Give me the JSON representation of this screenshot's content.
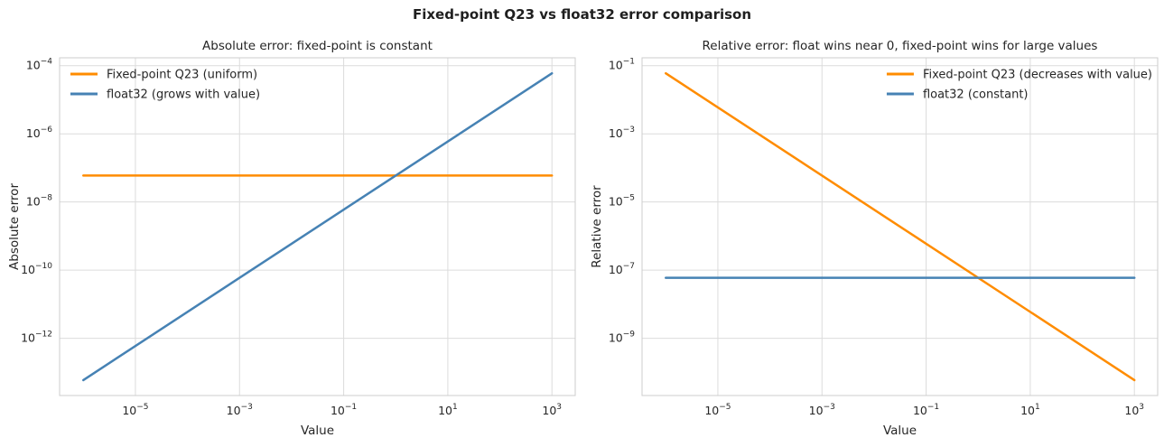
{
  "figure": {
    "title": "Fixed-point Q23 vs float32 error comparison",
    "background": "#ffffff"
  },
  "style": {
    "grid_color": "#dcdcdc",
    "spine_color": "#cccccc",
    "text_color": "#262626",
    "title_color": "#1f1f1f",
    "orange": "#ff8c00",
    "blue": "#4682b4"
  },
  "chart_data": [
    {
      "type": "line",
      "title": "Absolute error: fixed-point is constant",
      "xlabel": "Value",
      "ylabel": "Absolute error",
      "xscale": "log",
      "yscale": "log",
      "grid": true,
      "legend_position": "upper-left",
      "xlim": [
        3.5e-07,
        2800.0
      ],
      "ylim": [
        2.1e-14,
        0.00017
      ],
      "xticks": [
        1e-05,
        0.001,
        0.1,
        10.0,
        1000.0
      ],
      "yticks": [
        0.0001,
        1e-06,
        1e-08,
        1e-10,
        1e-12
      ],
      "series": [
        {
          "name": "Fixed-point Q23 (uniform)",
          "color": "#ff8c00",
          "x": [
            1e-06,
            1000.0
          ],
          "y": [
            5.96e-08,
            5.96e-08
          ]
        },
        {
          "name": "float32 (grows with value)",
          "color": "#4682b4",
          "x": [
            1e-06,
            1000.0
          ],
          "y": [
            5.96e-14,
            5.96e-05
          ]
        }
      ]
    },
    {
      "type": "line",
      "title": "Relative error: float wins near 0, fixed-point wins for large values",
      "xlabel": "Value",
      "ylabel": "Relative error",
      "xscale": "log",
      "yscale": "log",
      "grid": true,
      "legend_position": "upper-right",
      "xlim": [
        3.5e-07,
        2800.0
      ],
      "ylim": [
        2.1e-11,
        0.17
      ],
      "xticks": [
        1e-05,
        0.001,
        0.1,
        10.0,
        1000.0
      ],
      "yticks": [
        0.1,
        0.001,
        1e-05,
        1e-07,
        1e-09
      ],
      "series": [
        {
          "name": "Fixed-point Q23 (decreases with value)",
          "color": "#ff8c00",
          "x": [
            1e-06,
            1000.0
          ],
          "y": [
            0.0596,
            5.96e-11
          ]
        },
        {
          "name": "float32 (constant)",
          "color": "#4682b4",
          "x": [
            1e-06,
            1000.0
          ],
          "y": [
            5.96e-08,
            5.96e-08
          ]
        }
      ]
    }
  ]
}
